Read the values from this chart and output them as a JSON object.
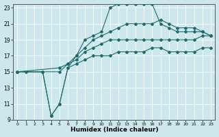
{
  "xlabel": "Humidex (Indice chaleur)",
  "ylabel": "",
  "xlim": [
    -0.5,
    23.5
  ],
  "ylim": [
    9,
    23.5
  ],
  "xticks": [
    0,
    1,
    2,
    3,
    4,
    5,
    6,
    7,
    8,
    9,
    10,
    11,
    12,
    13,
    14,
    15,
    16,
    17,
    18,
    19,
    20,
    21,
    22,
    23
  ],
  "yticks": [
    9,
    11,
    13,
    15,
    17,
    19,
    21,
    23
  ],
  "bg_color": "#cde8ec",
  "line_color": "#1e6b6b",
  "grid_color": "#b0d8de",
  "lines": [
    {
      "x": [
        0,
        1,
        3,
        4,
        5,
        6,
        7,
        8,
        9,
        10,
        11,
        12,
        13,
        14,
        15,
        16,
        17,
        18,
        19,
        20,
        21,
        22,
        23
      ],
      "y": [
        15,
        15,
        15,
        9.5,
        11,
        15.5,
        17,
        19,
        19.5,
        20,
        23,
        23.5,
        23.5,
        23.5,
        23.5,
        23.5,
        21,
        20.5,
        20,
        20,
        20,
        20,
        19.5
      ]
    },
    {
      "x": [
        0,
        3,
        4,
        5,
        6,
        7,
        8,
        9,
        10,
        11,
        12,
        13,
        14,
        15,
        16,
        17,
        18,
        19,
        20,
        21,
        22,
        23
      ],
      "y": [
        15,
        15,
        9.5,
        11,
        15.5,
        16,
        16.5,
        17,
        17,
        17,
        17.5,
        17.5,
        17.5,
        17.5,
        18,
        18,
        17.5,
        17.5,
        17.5,
        17.5,
        18,
        18
      ]
    },
    {
      "x": [
        0,
        5,
        6,
        7,
        8,
        9,
        10,
        11,
        12,
        13,
        14,
        15,
        16,
        17,
        18,
        19,
        20,
        21,
        22,
        23
      ],
      "y": [
        15,
        15.5,
        16,
        17,
        18,
        19,
        19.5,
        20,
        20.5,
        21,
        21,
        21,
        21,
        21.5,
        21,
        20.5,
        20.5,
        20.5,
        20,
        19.5
      ]
    },
    {
      "x": [
        0,
        5,
        6,
        7,
        8,
        9,
        10,
        11,
        12,
        13,
        14,
        15,
        16,
        17,
        18,
        19,
        20,
        21,
        22,
        23
      ],
      "y": [
        15,
        15,
        16,
        16.5,
        17.5,
        18,
        18.5,
        19,
        19,
        19,
        19,
        19,
        19,
        19,
        19,
        19,
        19,
        19,
        19.5,
        19.5
      ]
    }
  ]
}
